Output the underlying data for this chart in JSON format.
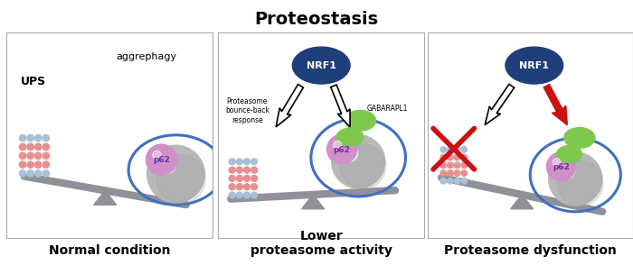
{
  "title": "Proteostasis",
  "title_fontsize": 14,
  "title_fontweight": "bold",
  "panel_labels": [
    "Normal condition",
    "Lower\nproteasome activity",
    "Proteasome dysfunction"
  ],
  "panel_label_fontsize": 10,
  "panel_label_fontweight": "bold",
  "nrf1_color": "#1e3f7a",
  "nrf1_text_color": "white",
  "p62_color": "#d090c8",
  "p62_aggregate_color": "#b8b8b8",
  "gabarapl1_color": "#7ec850",
  "proteasome_color_blue": "#a8c0d8",
  "proteasome_color_red": "#e89090",
  "balance_color": "#909098",
  "arrow_red_color": "#cc1111",
  "cross_color": "#cc1111",
  "aggrephagy_text": "aggrephagy",
  "ups_text": "UPS",
  "p62_text": "p62",
  "nrf1_text": "NRF1",
  "gabarapl1_text": "GABARAPL1",
  "bounce_back_text": "Proteasome\nbounce-back\nresponse",
  "panel_border_color": "#aaaaaa",
  "background_color": "white",
  "orbit_color": "#4070c0"
}
